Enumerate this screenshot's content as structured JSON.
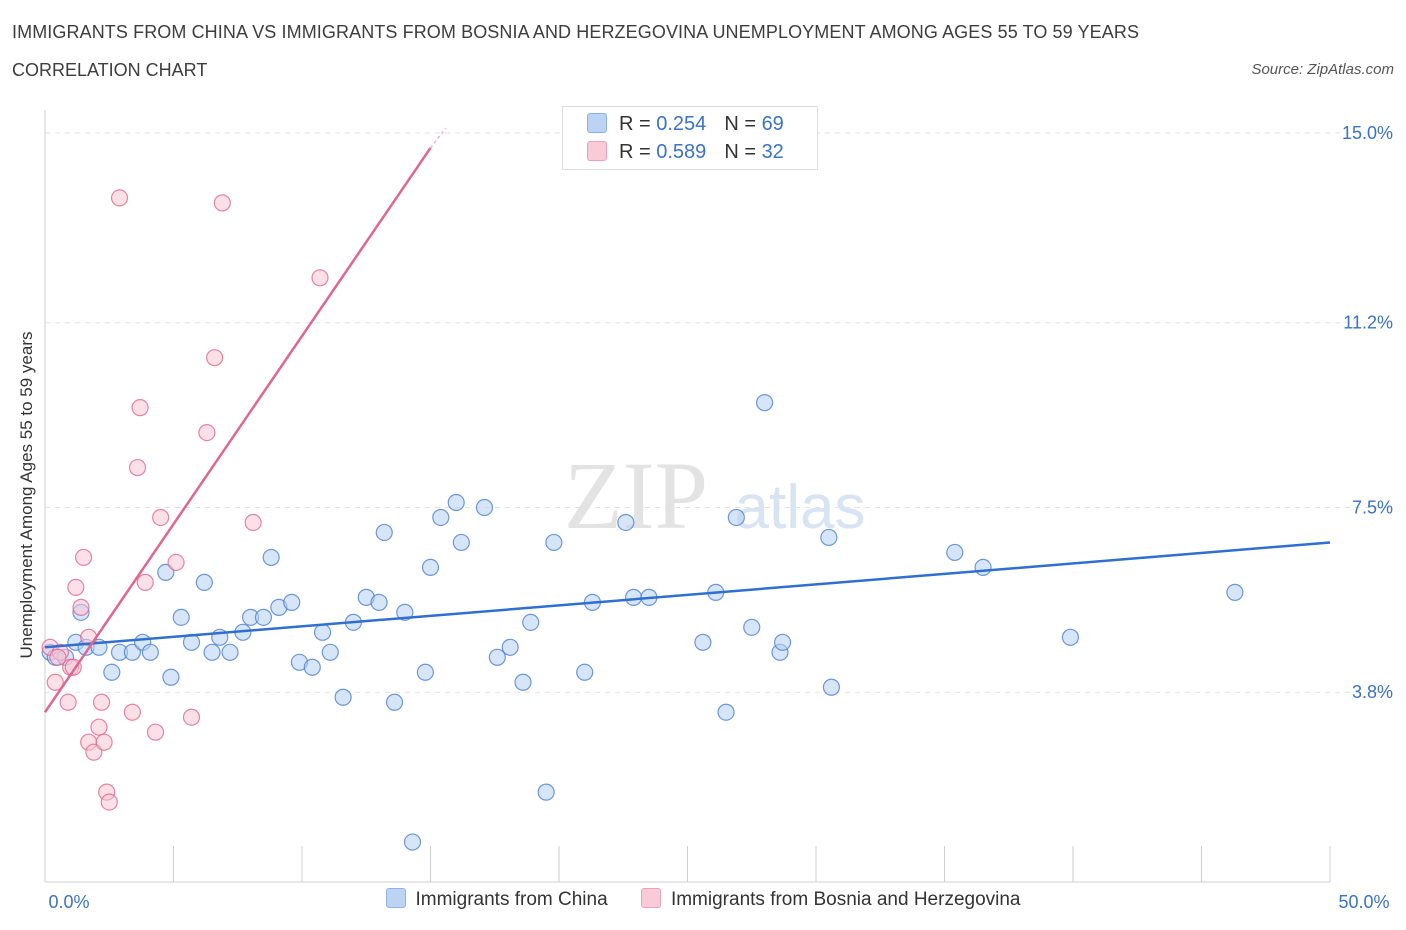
{
  "title": "IMMIGRANTS FROM CHINA VS IMMIGRANTS FROM BOSNIA AND HERZEGOVINA UNEMPLOYMENT AMONG AGES 55 TO 59 YEARS",
  "subtitle": "CORRELATION CHART",
  "source": "Source: ZipAtlas.com",
  "watermark": {
    "zip": "ZIP",
    "atlas": "atlas"
  },
  "legend_top": [
    {
      "r_label": "R = ",
      "r_value": "0.254",
      "n_label": "N = ",
      "n_value": "69",
      "color": "#a9c8f0"
    },
    {
      "r_label": "R = ",
      "r_value": "0.589",
      "n_label": "N = ",
      "n_value": "32",
      "color": "#f7b9cd"
    }
  ],
  "colors": {
    "china": "#4a7fd0",
    "china_fill": "#b6cff2",
    "bosnia": "#e0668f",
    "bosnia_fill": "#f8c6d6",
    "axis_label": "#3a73c6"
  },
  "chart_data": {
    "type": "scatter",
    "ylabel": "Unemployment Among Ages 55 to 59 years",
    "xlim": [
      0,
      50
    ],
    "ylim": [
      0,
      15.3
    ],
    "x_tick_labels": [
      {
        "value": 0,
        "label": "0.0%"
      },
      {
        "value": 50,
        "label": "50.0%"
      }
    ],
    "y_tick_labels": [
      {
        "value": 3.8,
        "label": "3.8%"
      },
      {
        "value": 7.5,
        "label": "7.5%"
      },
      {
        "value": 11.2,
        "label": "11.2%"
      },
      {
        "value": 15.0,
        "label": "15.0%"
      }
    ],
    "series": [
      {
        "name": "Immigrants from China",
        "trend": [
          [
            0,
            4.7
          ],
          [
            50,
            6.8
          ]
        ],
        "points": [
          [
            0.2,
            4.6
          ],
          [
            0.4,
            4.5
          ],
          [
            0.8,
            4.5
          ],
          [
            1.2,
            4.8
          ],
          [
            1.4,
            5.4
          ],
          [
            1.6,
            4.7
          ],
          [
            2.1,
            4.7
          ],
          [
            2.6,
            4.2
          ],
          [
            2.9,
            4.6
          ],
          [
            3.4,
            4.6
          ],
          [
            3.8,
            4.8
          ],
          [
            4.1,
            4.6
          ],
          [
            4.7,
            6.2
          ],
          [
            4.9,
            4.1
          ],
          [
            5.3,
            5.3
          ],
          [
            5.7,
            4.8
          ],
          [
            6.2,
            6.0
          ],
          [
            6.5,
            4.6
          ],
          [
            6.8,
            4.9
          ],
          [
            7.2,
            4.6
          ],
          [
            7.7,
            5.0
          ],
          [
            8.0,
            5.3
          ],
          [
            8.5,
            5.3
          ],
          [
            8.8,
            6.5
          ],
          [
            9.1,
            5.5
          ],
          [
            9.6,
            5.6
          ],
          [
            9.9,
            4.4
          ],
          [
            10.4,
            4.3
          ],
          [
            10.8,
            5.0
          ],
          [
            11.1,
            4.6
          ],
          [
            11.6,
            3.7
          ],
          [
            12.0,
            5.2
          ],
          [
            12.5,
            5.7
          ],
          [
            13.0,
            5.6
          ],
          [
            13.2,
            7.0
          ],
          [
            13.6,
            3.6
          ],
          [
            14.0,
            5.4
          ],
          [
            14.3,
            0.8
          ],
          [
            14.8,
            4.2
          ],
          [
            15.0,
            6.3
          ],
          [
            15.4,
            7.3
          ],
          [
            16.0,
            7.6
          ],
          [
            16.2,
            6.8
          ],
          [
            17.1,
            7.5
          ],
          [
            17.6,
            4.5
          ],
          [
            18.1,
            4.7
          ],
          [
            18.6,
            4.0
          ],
          [
            18.9,
            5.2
          ],
          [
            19.5,
            1.8
          ],
          [
            19.8,
            6.8
          ],
          [
            21.0,
            4.2
          ],
          [
            21.3,
            5.6
          ],
          [
            22.6,
            7.2
          ],
          [
            22.9,
            5.7
          ],
          [
            23.5,
            5.7
          ],
          [
            25.6,
            4.8
          ],
          [
            26.1,
            5.8
          ],
          [
            26.5,
            3.4
          ],
          [
            26.9,
            7.3
          ],
          [
            27.5,
            5.1
          ],
          [
            28.0,
            9.6
          ],
          [
            28.6,
            4.6
          ],
          [
            28.7,
            4.8
          ],
          [
            30.6,
            3.9
          ],
          [
            30.5,
            6.9
          ],
          [
            35.4,
            6.6
          ],
          [
            36.5,
            6.3
          ],
          [
            39.9,
            4.9
          ],
          [
            46.3,
            5.8
          ]
        ]
      },
      {
        "name": "Immigrants from Bosnia and Herzegovina",
        "trend": [
          [
            0,
            3.4
          ],
          [
            15.0,
            14.7
          ]
        ],
        "trend_dashed": [
          [
            15.0,
            14.7
          ],
          [
            15.6,
            15.1
          ]
        ],
        "points": [
          [
            0.2,
            4.7
          ],
          [
            0.4,
            4.0
          ],
          [
            0.6,
            4.6
          ],
          [
            0.9,
            3.6
          ],
          [
            1.0,
            4.3
          ],
          [
            1.1,
            4.3
          ],
          [
            1.2,
            5.9
          ],
          [
            1.4,
            5.5
          ],
          [
            1.5,
            6.5
          ],
          [
            1.7,
            4.9
          ],
          [
            1.7,
            2.8
          ],
          [
            1.9,
            2.6
          ],
          [
            2.1,
            3.1
          ],
          [
            2.2,
            3.6
          ],
          [
            2.3,
            2.8
          ],
          [
            2.4,
            1.8
          ],
          [
            2.5,
            1.6
          ],
          [
            2.9,
            13.7
          ],
          [
            3.4,
            3.4
          ],
          [
            3.6,
            8.3
          ],
          [
            3.7,
            9.5
          ],
          [
            3.9,
            6.0
          ],
          [
            4.3,
            3.0
          ],
          [
            4.5,
            7.3
          ],
          [
            5.1,
            6.4
          ],
          [
            5.7,
            3.3
          ],
          [
            6.3,
            9.0
          ],
          [
            6.6,
            10.5
          ],
          [
            6.9,
            13.6
          ],
          [
            8.1,
            7.2
          ],
          [
            10.7,
            12.1
          ],
          [
            0.5,
            4.5
          ]
        ]
      }
    ]
  }
}
